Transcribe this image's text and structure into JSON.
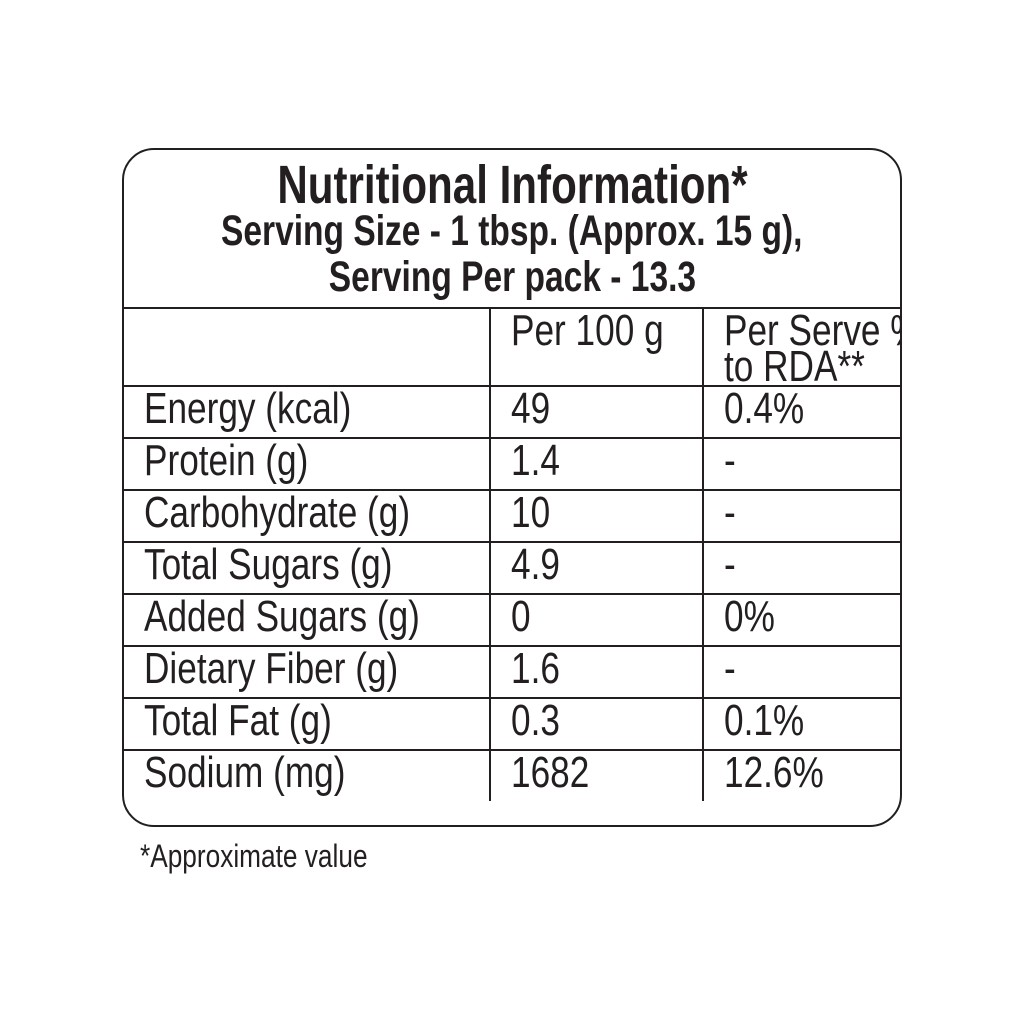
{
  "title": "Nutritional Information*",
  "serving_size": "Serving Size - 1 tbsp. (Approx. 15 g),",
  "servings_per_pack": "Serving Per pack - 13.3",
  "columns": [
    "",
    "Per 100 g",
    "Per Serve %",
    "to RDA**"
  ],
  "rows": [
    {
      "nutrient": "Energy (kcal)",
      "per100": "49",
      "rda": "0.4%"
    },
    {
      "nutrient": "Protein (g)",
      "per100": "1.4",
      "rda": "-"
    },
    {
      "nutrient": "Carbohydrate (g)",
      "per100": "10",
      "rda": "-"
    },
    {
      "nutrient": "Total Sugars (g)",
      "per100": "4.9",
      "rda": "-"
    },
    {
      "nutrient": "Added Sugars (g)",
      "per100": "0",
      "rda": "0%"
    },
    {
      "nutrient": "Dietary Fiber (g)",
      "per100": "1.6",
      "rda": "-"
    },
    {
      "nutrient": "Total Fat (g)",
      "per100": "0.3",
      "rda": "0.1%"
    },
    {
      "nutrient": "Sodium (mg)",
      "per100": "1682",
      "rda": "12.6%"
    }
  ],
  "footnote": "*Approximate value"
}
